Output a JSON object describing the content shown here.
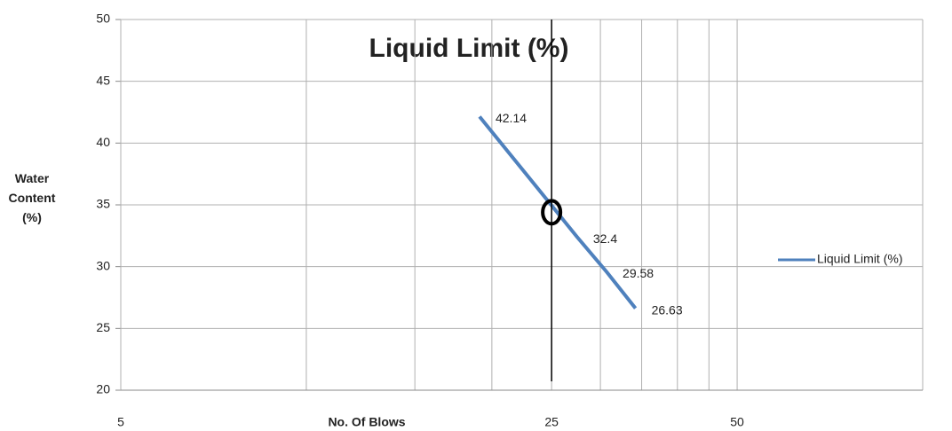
{
  "chart_data": {
    "type": "line",
    "title": "Liquid Limit (%)",
    "x_label": "No. Of Blows",
    "y_label": "Water Content (%)",
    "x": [
      19.1,
      27.5,
      30.7,
      34.2
    ],
    "series": [
      {
        "name": "Liquid Limit (%)",
        "color": "#4f81bd",
        "values": [
          42.14,
          32.4,
          29.58,
          26.63
        ]
      }
    ],
    "xlim": [
      5,
      100
    ],
    "xticks": [
      5,
      25,
      50
    ],
    "x_log": true,
    "x_gridlines": [
      5,
      10,
      15,
      20,
      25,
      30,
      35,
      40,
      45,
      50,
      100
    ],
    "ylim": [
      20,
      50
    ],
    "yticks": [
      20,
      25,
      30,
      35,
      40,
      45,
      50
    ],
    "grid": true,
    "reference_line_x": 25,
    "marker": {
      "x": 25,
      "y": 34.4
    },
    "legend": "right"
  }
}
